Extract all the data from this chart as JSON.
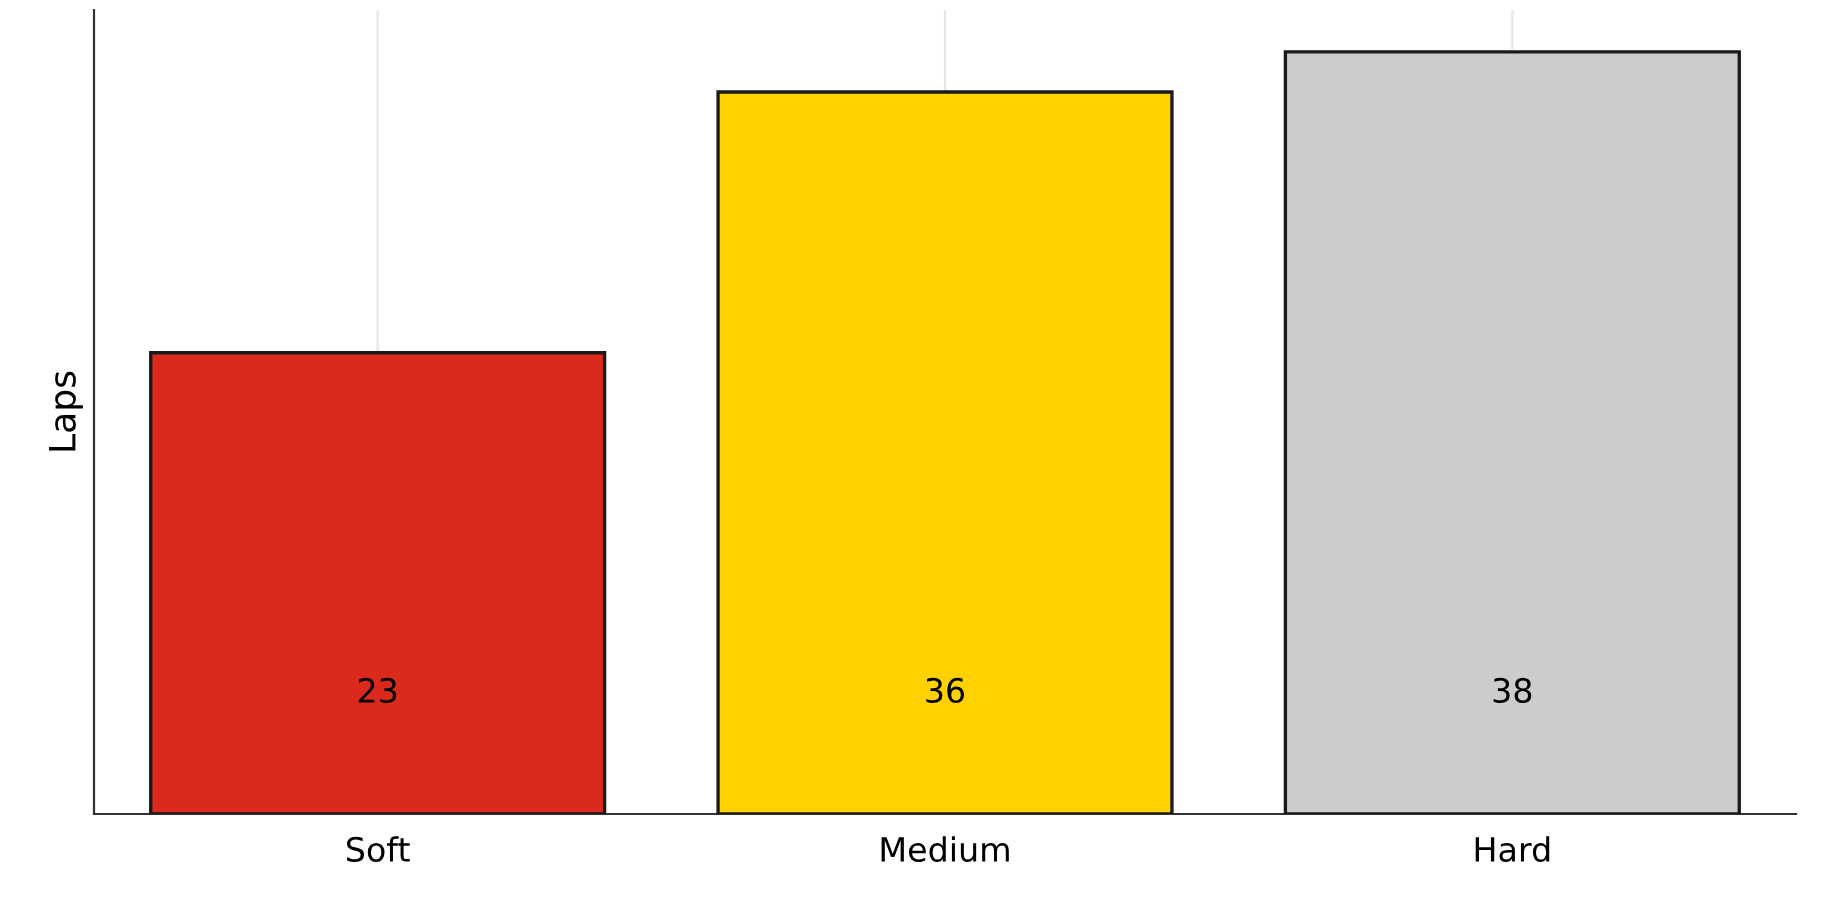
{
  "chart_data": {
    "type": "bar",
    "ylabel": "Laps",
    "categories": [
      "Soft",
      "Medium",
      "Hard"
    ],
    "values": [
      23,
      36,
      38
    ],
    "colors": [
      "#dc291e",
      "#ffd100",
      "#cccccc"
    ],
    "data_labels": true,
    "grid": "x",
    "tick_labels": "x",
    "legend": false
  }
}
